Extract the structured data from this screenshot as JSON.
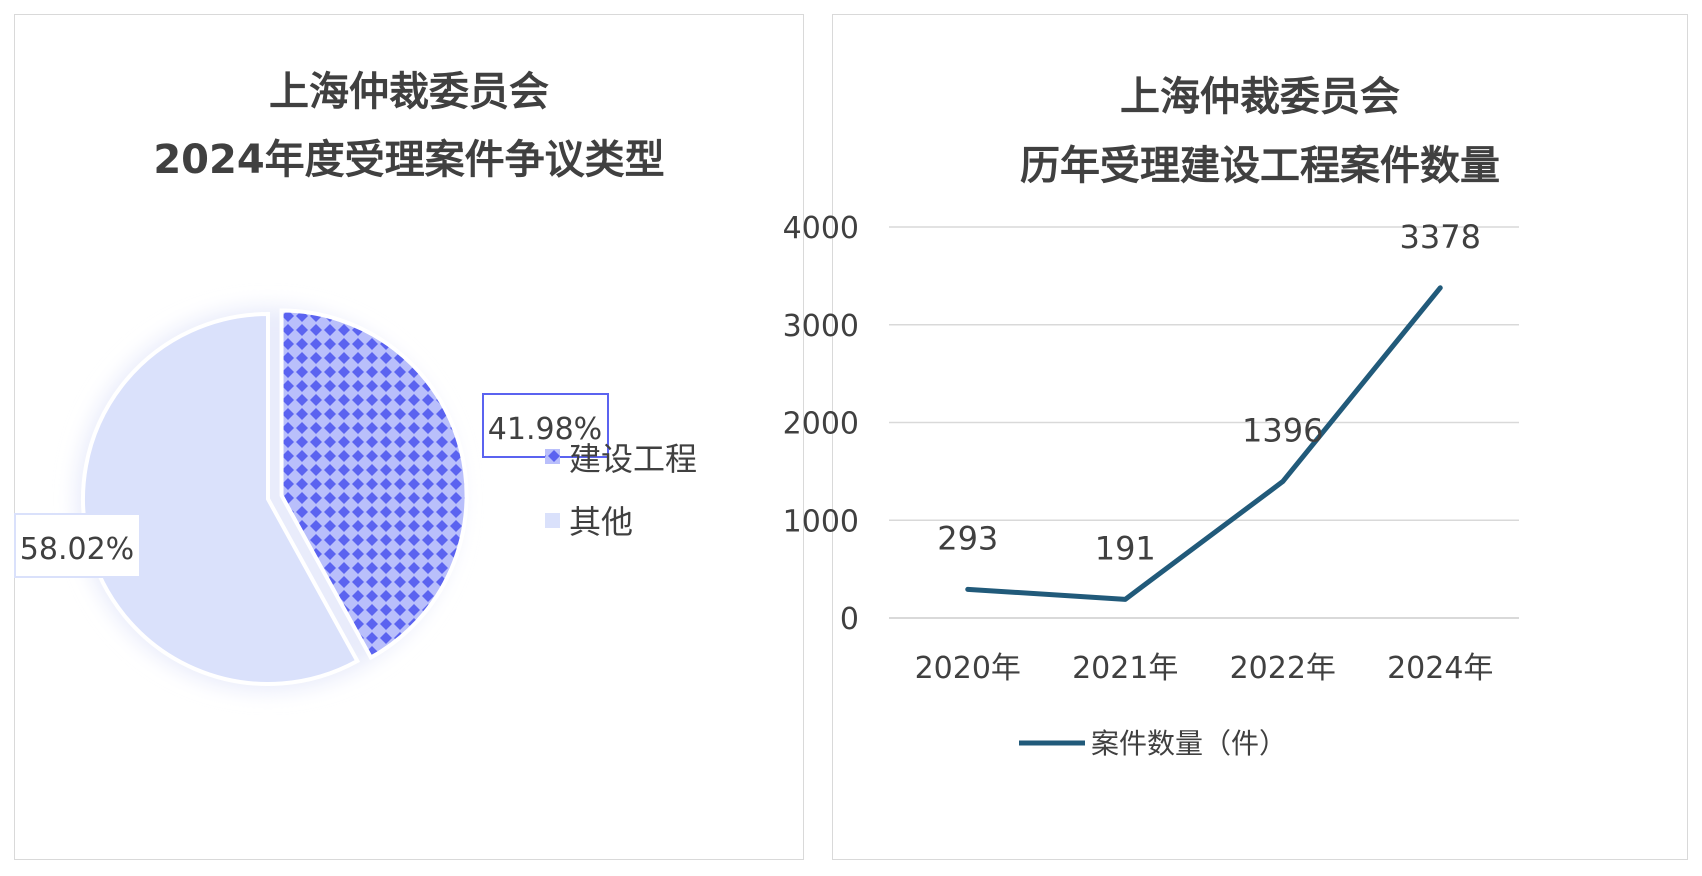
{
  "chart_data": [
    {
      "type": "pie",
      "title": "上海仲裁委员会",
      "subtitle": "2024年度受理案件争议类型",
      "slices": [
        {
          "name": "建设工程",
          "value": 41.98,
          "label": "41.98%"
        },
        {
          "name": "其他",
          "value": 58.02,
          "label": "58.02%"
        }
      ],
      "legend": "right",
      "colors": {
        "construction": "#5b63f0",
        "construction_light": "#b9bffb",
        "other": "#dae1fb",
        "edge": "#ffffff"
      }
    },
    {
      "type": "line",
      "title": "上海仲裁委员会",
      "subtitle": "历年受理建设工程案件数量",
      "categories": [
        "2020年",
        "2021年",
        "2022年",
        "2024年"
      ],
      "series": [
        {
          "name": "案件数量（件）",
          "values": [
            293,
            191,
            1396,
            3378
          ]
        }
      ],
      "data_labels": [
        "293",
        "191",
        "1396",
        "3378"
      ],
      "y_ticks": [
        "0",
        "1000",
        "2000",
        "3000",
        "4000"
      ],
      "ylim": [
        0,
        4000
      ],
      "grid": true,
      "legend": "bottom",
      "colors": {
        "line": "#215a7a",
        "grid": "#d9d9d9",
        "text": "#404040"
      }
    }
  ]
}
